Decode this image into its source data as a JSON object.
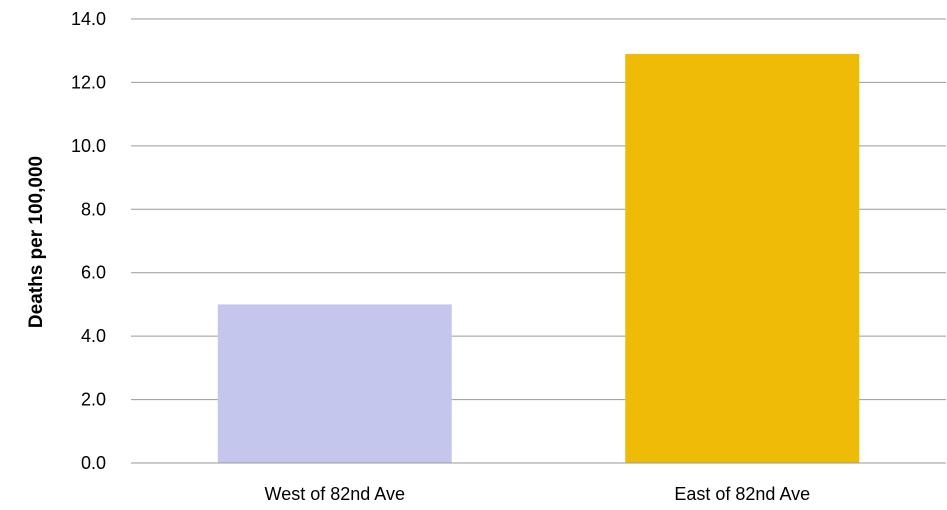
{
  "chart_data": {
    "type": "bar",
    "title": "",
    "xlabel": "",
    "ylabel": "Deaths per 100,000",
    "ylim": [
      0,
      14
    ],
    "yticks": [
      "0.0",
      "2.0",
      "4.0",
      "6.0",
      "8.0",
      "10.0",
      "12.0",
      "14.0"
    ],
    "grid": true,
    "legend": "none",
    "categories": [
      "West of 82nd Ave",
      "East of 82nd Ave"
    ],
    "values": [
      5.0,
      12.9
    ],
    "colors": [
      "#c5c6ee",
      "#eebb07"
    ]
  }
}
